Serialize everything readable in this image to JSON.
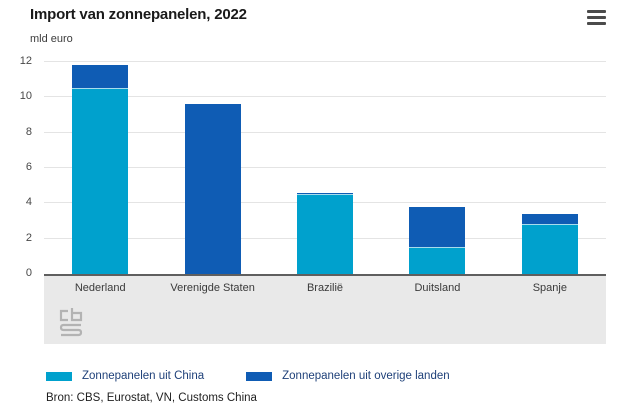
{
  "header": {
    "title": "Import van zonnepanelen, 2022",
    "menu_icon": "hamburger-menu"
  },
  "chart_data": {
    "type": "bar",
    "stacked": true,
    "title": "Import van zonnepanelen, 2022",
    "ylabel": "mld euro",
    "xlabel": "",
    "categories": [
      "Nederland",
      "Verenigde Staten",
      "Brazilië",
      "Duitsland",
      "Spanje"
    ],
    "series": [
      {
        "name": "Zonnepanelen uit China",
        "color": "#00a1cd",
        "values": [
          10.5,
          0,
          4.45,
          1.45,
          2.8
        ]
      },
      {
        "name": "Zonnepanelen uit overige landen",
        "color": "#0f5cb4",
        "values": [
          1.3,
          9.6,
          0.1,
          2.3,
          0.55
        ]
      }
    ],
    "ylim": [
      0,
      12
    ],
    "yticks": [
      0,
      2,
      4,
      6,
      8,
      10,
      12
    ],
    "grid": true,
    "legend_position": "bottom"
  },
  "colors": {
    "series_china": "#00a1cd",
    "series_other": "#0f5cb4",
    "axis_band": "#e9e9e9",
    "gridline": "#e4e4e4",
    "axis_line": "#5f5f5f",
    "legend_text": "#1e4079",
    "segment_separator": "#a8dcec"
  },
  "footer": {
    "source": "Bron: CBS, Eurostat, VN, Customs China",
    "logo": "cbs-logo"
  }
}
